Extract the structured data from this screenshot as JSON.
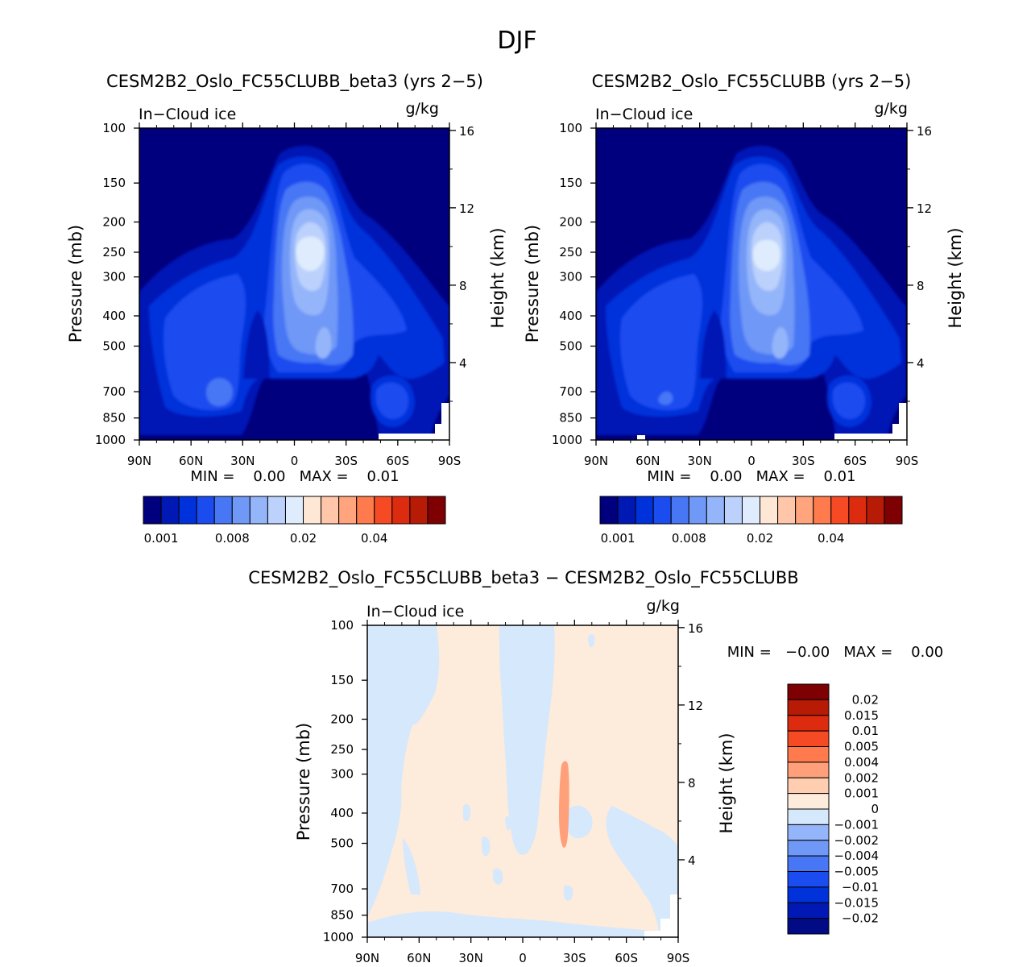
{
  "season_title": "DJF",
  "colors": {
    "seq": [
      "#00007e",
      "#0019b5",
      "#0032dc",
      "#1a4cf0",
      "#4777f4",
      "#6f98f7",
      "#95b5fa",
      "#bcd2fc",
      "#dfecfd",
      "#ffe7d5",
      "#ffc6aa",
      "#ffa47d",
      "#ff7a4d",
      "#f54a24",
      "#dc2b0e",
      "#b71b05",
      "#7e0003"
    ],
    "diff": [
      "#000b85",
      "#0019b5",
      "#0032dc",
      "#1a4cf0",
      "#4777f4",
      "#6f98f7",
      "#95b5fa",
      "#d6e8fc",
      "#fdebdc",
      "#ffcdb0",
      "#ffa07a",
      "#ff7a4d",
      "#f54a24",
      "#dc2b0e",
      "#b71b05",
      "#7e0003"
    ]
  },
  "panels": [
    {
      "title": "CESM2B2_Oslo_FC55CLUBB_beta3 (yrs 2−5)",
      "left_label": "In−Cloud ice",
      "right_label": "g/kg",
      "min_max": "MIN =    0.00   MAX =    0.01",
      "colorbar_labels": [
        "0.001",
        "0.008",
        "0.02",
        "0.04"
      ]
    },
    {
      "title": "CESM2B2_Oslo_FC55CLUBB (yrs 2−5)",
      "left_label": "In−Cloud ice",
      "right_label": "g/kg",
      "min_max": "MIN =    0.00   MAX =    0.01",
      "colorbar_labels": [
        "0.001",
        "0.008",
        "0.02",
        "0.04"
      ]
    },
    {
      "title": "CESM2B2_Oslo_FC55CLUBB_beta3 − CESM2B2_Oslo_FC55CLUBB",
      "left_label": "In−Cloud ice",
      "right_label": "g/kg",
      "min_max": "MIN =   −0.00   MAX =    0.00",
      "colorbar_labels": [
        "0.02",
        "0.015",
        "0.01",
        "0.005",
        "0.004",
        "0.002",
        "0.001",
        "0",
        "−0.001",
        "−0.002",
        "−0.004",
        "−0.005",
        "−0.01",
        "−0.015",
        "−0.02"
      ]
    }
  ],
  "chart_data": {
    "type": "heatmap",
    "x_ticks": [
      "90N",
      "60N",
      "30N",
      "0",
      "30S",
      "60S",
      "90S"
    ],
    "pressure_ticks": [
      "100",
      "150",
      "200",
      "250",
      "300",
      "400",
      "500",
      "700",
      "850",
      "1000"
    ],
    "height_ticks": [
      "16",
      "12",
      "8",
      "4"
    ],
    "ylabel_left": "Pressure (mb)",
    "ylabel_right": "Height (km)",
    "x_range_deg": [
      90,
      -90
    ],
    "p_range_mb": [
      100,
      1000
    ]
  }
}
